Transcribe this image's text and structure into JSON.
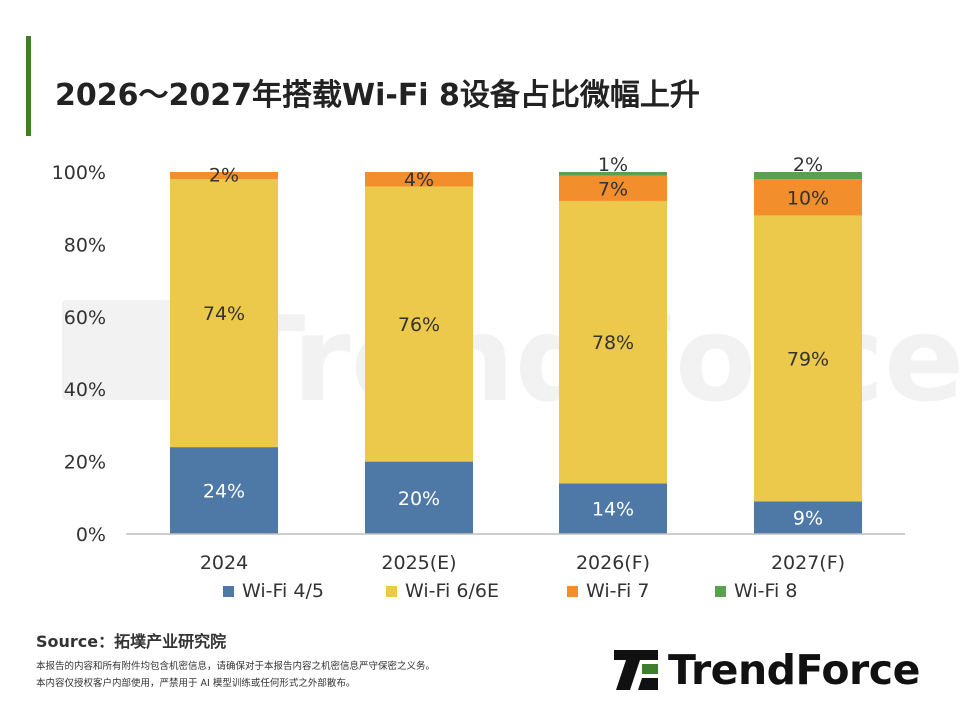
{
  "title": "2026～2027年搭载Wi-Fi 8设备占比微幅上升",
  "colors": {
    "title_bar": "#3e7f2a",
    "wifi45": "#4e79a7",
    "wifi66e": "#ecc94b",
    "wifi7": "#f28e2b",
    "wifi8": "#59a14f",
    "watermark": "#f2f2f2"
  },
  "chart_data": {
    "type": "bar",
    "stacked": true,
    "categories": [
      "2024",
      "2025(E)",
      "2026(F)",
      "2027(F)"
    ],
    "series": [
      {
        "name": "Wi-Fi 4/5",
        "values": [
          24,
          20,
          14,
          9
        ],
        "labels": [
          "24%",
          "20%",
          "14%",
          "9%"
        ]
      },
      {
        "name": "Wi-Fi 6/6E",
        "values": [
          74,
          76,
          78,
          79
        ],
        "labels": [
          "74%",
          "76%",
          "78%",
          "79%"
        ]
      },
      {
        "name": "Wi-Fi 7",
        "values": [
          2,
          4,
          7,
          10
        ],
        "labels": [
          "2%",
          "4%",
          "7%",
          "10%"
        ]
      },
      {
        "name": "Wi-Fi 8",
        "values": [
          0,
          0,
          1,
          2
        ],
        "labels": [
          "",
          "",
          "1%",
          "2%"
        ]
      }
    ],
    "yticks": [
      "0%",
      "20%",
      "40%",
      "60%",
      "80%",
      "100%"
    ],
    "ylim": [
      0,
      100
    ],
    "legend_position": "bottom"
  },
  "watermark": "TrendForce",
  "source": "Source：拓墣产业研究院",
  "disclaimer": [
    "本报告的内容和所有附件均包含机密信息，请确保对于本报告内容之机密信息严守保密之义务。",
    "本内容仅授权客户内部使用，严禁用于 AI 模型训练或任何形式之外部散布。"
  ],
  "logo_text": "TrendForce"
}
